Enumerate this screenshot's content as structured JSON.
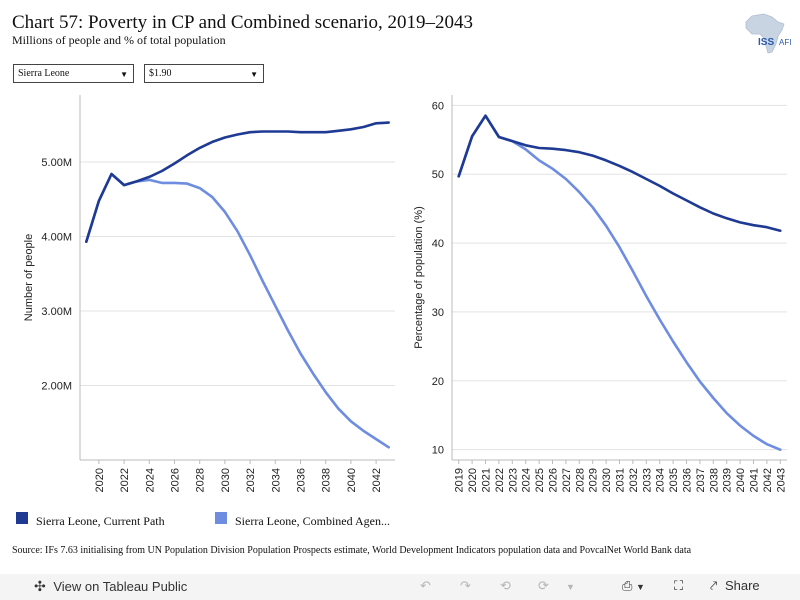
{
  "header": {
    "title": "Chart 57: Poverty in CP and Combined scenario, 2019–2043",
    "subtitle": "Millions of people and % of total population"
  },
  "logo": {
    "text": "ISS",
    "text2": "AFI",
    "icon": "africa-map-icon"
  },
  "filters": {
    "country": "Sierra Leone",
    "poverty_line": "$1.90"
  },
  "legend": [
    {
      "label": "Sierra Leone, Current Path",
      "color": "#1f3a93"
    },
    {
      "label": "Sierra Leone, Combined Agen...",
      "color": "#6e8de0"
    }
  ],
  "source": "Source: IFs 7.63 initialising from UN Population Division Population Prospects estimate, World Development Indicators population data and PovcalNet World Bank data",
  "toolbar": {
    "view_label": "View on Tableau Public",
    "share_label": "Share",
    "icons": [
      "undo-icon",
      "redo-icon",
      "revert-icon",
      "refresh-icon",
      "download-icon",
      "fullscreen-icon",
      "share-icon"
    ]
  },
  "chart_data": [
    {
      "type": "line",
      "ylabel": "Number of people",
      "ylim": [
        1.0,
        5.9
      ],
      "yticks": [
        2.0,
        3.0,
        4.0,
        5.0
      ],
      "ytick_labels": [
        "2.00M",
        "3.00M",
        "4.00M",
        "5.00M"
      ],
      "xlim": [
        2018.5,
        2043.5
      ],
      "xticks": [
        2020,
        2022,
        2024,
        2026,
        2028,
        2030,
        2032,
        2034,
        2036,
        2038,
        2040,
        2042
      ],
      "x": [
        2019,
        2020,
        2021,
        2022,
        2023,
        2024,
        2025,
        2026,
        2027,
        2028,
        2029,
        2030,
        2031,
        2032,
        2033,
        2034,
        2035,
        2036,
        2037,
        2038,
        2039,
        2040,
        2041,
        2042,
        2043
      ],
      "series": [
        {
          "name": "Sierra Leone, Current Path",
          "color": "#1f3a93",
          "values": [
            3.93,
            4.48,
            4.84,
            4.69,
            4.74,
            4.8,
            4.88,
            4.98,
            5.09,
            5.19,
            5.27,
            5.33,
            5.37,
            5.4,
            5.41,
            5.41,
            5.41,
            5.4,
            5.4,
            5.4,
            5.42,
            5.44,
            5.47,
            5.52,
            5.53
          ]
        },
        {
          "name": "Sierra Leone, Combined Agen...",
          "color": "#6e8de0",
          "values": [
            3.93,
            4.48,
            4.84,
            4.69,
            4.74,
            4.76,
            4.72,
            4.72,
            4.71,
            4.65,
            4.53,
            4.33,
            4.07,
            3.75,
            3.4,
            3.07,
            2.74,
            2.43,
            2.16,
            1.91,
            1.69,
            1.52,
            1.39,
            1.28,
            1.17
          ]
        }
      ]
    },
    {
      "type": "line",
      "ylabel": "Percentage of population (%)",
      "ylim": [
        8.5,
        61.5
      ],
      "yticks": [
        10,
        20,
        30,
        40,
        50,
        60
      ],
      "ytick_labels": [
        "10",
        "20",
        "30",
        "40",
        "50",
        "60"
      ],
      "xlim": [
        2018.5,
        2043.5
      ],
      "xticks": [
        2019,
        2020,
        2021,
        2022,
        2023,
        2024,
        2025,
        2026,
        2027,
        2028,
        2029,
        2030,
        2031,
        2032,
        2033,
        2034,
        2035,
        2036,
        2037,
        2038,
        2039,
        2040,
        2041,
        2042,
        2043
      ],
      "x": [
        2019,
        2020,
        2021,
        2022,
        2023,
        2024,
        2025,
        2026,
        2027,
        2028,
        2029,
        2030,
        2031,
        2032,
        2033,
        2034,
        2035,
        2036,
        2037,
        2038,
        2039,
        2040,
        2041,
        2042,
        2043
      ],
      "series": [
        {
          "name": "Sierra Leone, Current Path",
          "color": "#1f3a93",
          "values": [
            49.7,
            55.5,
            58.5,
            55.4,
            54.8,
            54.2,
            53.8,
            53.7,
            53.5,
            53.2,
            52.7,
            52.0,
            51.2,
            50.3,
            49.3,
            48.3,
            47.2,
            46.2,
            45.2,
            44.3,
            43.6,
            43.0,
            42.6,
            42.3,
            41.8
          ]
        },
        {
          "name": "Sierra Leone, Combined Agen...",
          "color": "#6e8de0",
          "values": [
            49.7,
            55.5,
            58.5,
            55.4,
            54.8,
            53.6,
            52.0,
            50.8,
            49.3,
            47.4,
            45.2,
            42.5,
            39.4,
            35.9,
            32.3,
            28.9,
            25.7,
            22.7,
            19.9,
            17.5,
            15.3,
            13.5,
            12.0,
            10.8,
            10.0
          ]
        }
      ]
    }
  ]
}
